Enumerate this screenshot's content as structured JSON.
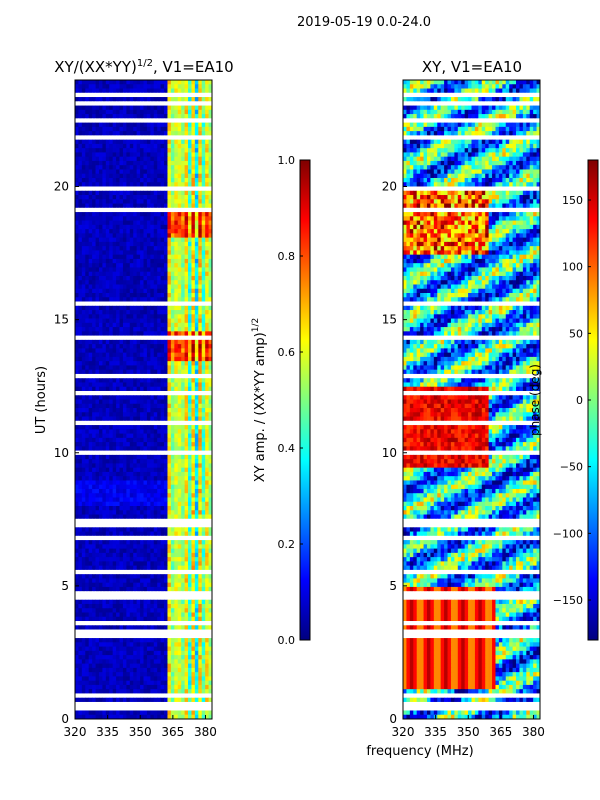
{
  "figure": {
    "suptitle": "2019-05-19 0.0-24.0",
    "shared_xlabel": "frequency (MHz)",
    "colors": {
      "jet": [
        "#00007f",
        "#0000ff",
        "#007fff",
        "#00ffff",
        "#7fff7f",
        "#ffff00",
        "#ff7f00",
        "#ff0000",
        "#7f0000"
      ],
      "gap": "#ffffff",
      "axis": "#000000"
    }
  },
  "chart_data": [
    {
      "type": "heatmap",
      "title": "XY/(XX*YY)^1/2, V1=EA10",
      "title_parts": {
        "text": "XY/(XX*YY)",
        "sup": "1/2",
        "rest": ", V1=EA10"
      },
      "xlabel": "frequency (MHz)",
      "ylabel": "UT (hours)",
      "xlim": [
        320,
        383
      ],
      "ylim": [
        0,
        24
      ],
      "xticks": [
        320,
        335,
        350,
        365,
        380
      ],
      "yticks": [
        0,
        5,
        10,
        15,
        20
      ],
      "colorbar": {
        "label_text": "XY amp. / (XX*YY amp)",
        "label_sup": "1/2",
        "vmin": 0.0,
        "vmax": 1.0,
        "ticks": [
          0.0,
          0.2,
          0.4,
          0.6,
          0.8,
          1.0
        ],
        "tick_labels": [
          "0.0",
          "0.2",
          "0.4",
          "0.6",
          "0.8",
          "1.0"
        ]
      },
      "description_values": {
        "background_amp": 0.02,
        "rfi_band_mhz": [
          362,
          383
        ],
        "rfi_band_amp_range": [
          0.3,
          0.85
        ]
      },
      "gap_hours": [
        0.9,
        1.1,
        3.3,
        3.55,
        4.5,
        4.75,
        7.3,
        7.85,
        8.8,
        15.5,
        15.6,
        19.9,
        20.0,
        22.5,
        23.2
      ]
    },
    {
      "type": "heatmap",
      "title": "XY, V1=EA10",
      "xlabel": "frequency (MHz)",
      "ylabel": "",
      "xlim": [
        320,
        383
      ],
      "ylim": [
        0,
        24
      ],
      "xticks": [
        320,
        335,
        350,
        365,
        380
      ],
      "yticks": [
        0,
        5,
        10,
        15,
        20
      ],
      "colorbar": {
        "label_text": "phase (deg)",
        "vmin": -180,
        "vmax": 180,
        "ticks": [
          -150,
          -100,
          -50,
          0,
          50,
          100,
          150
        ],
        "tick_labels": [
          "−150",
          "−100",
          "−50",
          "0",
          "50",
          "100",
          "150"
        ]
      },
      "description_values": {
        "low_band_hours": [
          1.2,
          5.0
        ],
        "low_band_phase": 120,
        "mid_band_hours": [
          9.5,
          12.5
        ],
        "mid_band_phase": 140
      },
      "gap_hours": [
        0.9,
        1.1,
        3.3,
        3.55,
        4.5,
        4.75,
        7.3,
        7.85,
        8.8,
        15.5,
        15.6,
        19.9,
        20.0,
        22.5,
        23.2
      ]
    }
  ]
}
